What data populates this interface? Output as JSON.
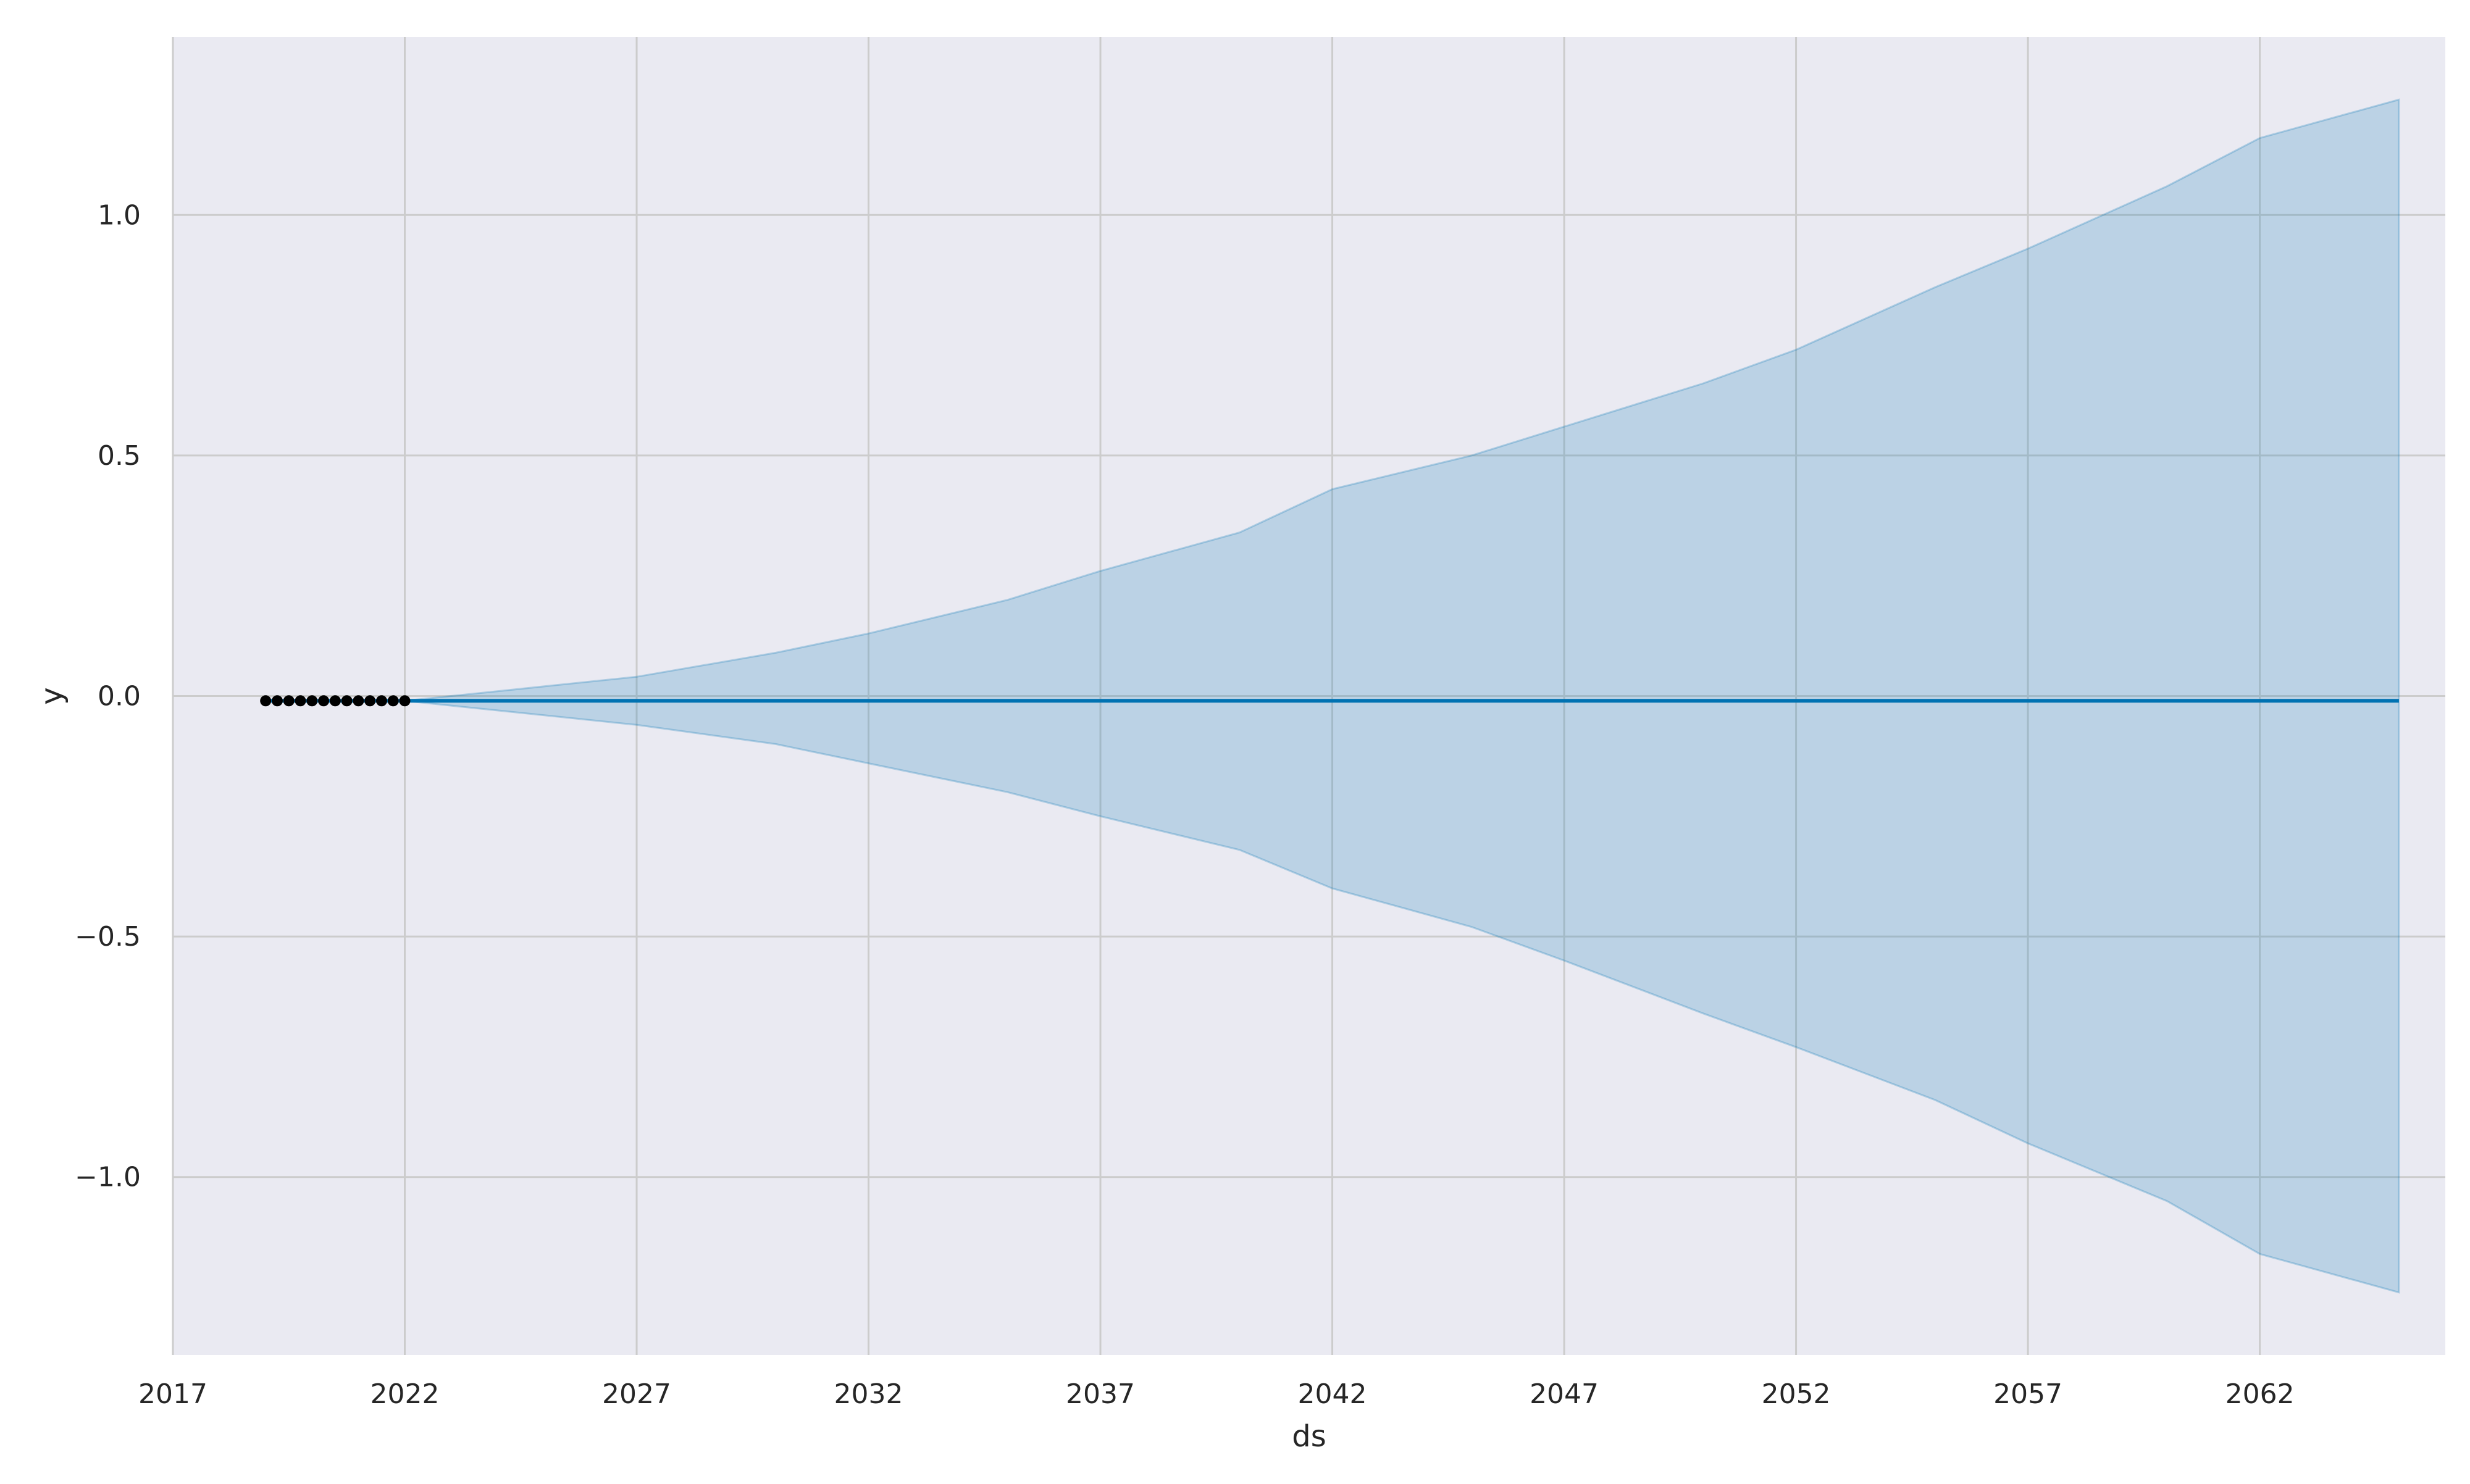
{
  "chart_data": {
    "type": "line",
    "title": "",
    "xlabel": "ds",
    "ylabel": "y",
    "xlim": [
      "2017-01-01",
      "2066-01-01"
    ],
    "ylim": [
      -1.37,
      1.37
    ],
    "x_ticks": [
      "2017",
      "2022",
      "2027",
      "2032",
      "2037",
      "2042",
      "2047",
      "2052",
      "2057",
      "2062"
    ],
    "y_ticks": [
      -1.0,
      -0.5,
      0.0,
      0.5,
      1.0
    ],
    "y_tick_labels": [
      "−1.0",
      "−0.5",
      "0.0",
      "0.5",
      "1.0"
    ],
    "grid": true,
    "legend": "none",
    "colors": {
      "background": "#eaeaf2",
      "grid": "#cccccc",
      "forecast_line": "#0072b2",
      "uncertainty_band": "#0072b2",
      "observed_points": "#000000"
    },
    "observed": {
      "x": [
        "2019-01",
        "2019-04",
        "2019-07",
        "2019-10",
        "2020-01",
        "2020-04",
        "2020-07",
        "2020-10",
        "2021-01",
        "2021-04",
        "2021-07",
        "2021-10",
        "2022-01"
      ],
      "y": [
        -0.01,
        -0.01,
        -0.01,
        -0.01,
        -0.01,
        -0.01,
        -0.01,
        -0.01,
        -0.01,
        -0.01,
        -0.01,
        -0.01,
        -0.01
      ]
    },
    "forecast": {
      "x": [
        "2019-01",
        "2022-01",
        "2065-01"
      ],
      "yhat": [
        -0.01,
        -0.01,
        -0.01
      ]
    },
    "uncertainty": {
      "x": [
        "2022-01",
        "2024-01",
        "2027-01",
        "2030-01",
        "2032-01",
        "2035-01",
        "2037-01",
        "2040-01",
        "2042-01",
        "2045-01",
        "2047-01",
        "2050-01",
        "2052-01",
        "2055-01",
        "2057-01",
        "2060-01",
        "2062-01",
        "2065-01"
      ],
      "upper": [
        -0.01,
        0.01,
        0.04,
        0.09,
        0.13,
        0.2,
        0.26,
        0.34,
        0.43,
        0.5,
        0.56,
        0.65,
        0.72,
        0.85,
        0.93,
        1.06,
        1.16,
        1.24
      ],
      "lower": [
        -0.01,
        -0.03,
        -0.06,
        -0.1,
        -0.14,
        -0.2,
        -0.25,
        -0.32,
        -0.4,
        -0.48,
        -0.55,
        -0.66,
        -0.73,
        -0.84,
        -0.93,
        -1.05,
        -1.16,
        -1.24
      ]
    }
  }
}
